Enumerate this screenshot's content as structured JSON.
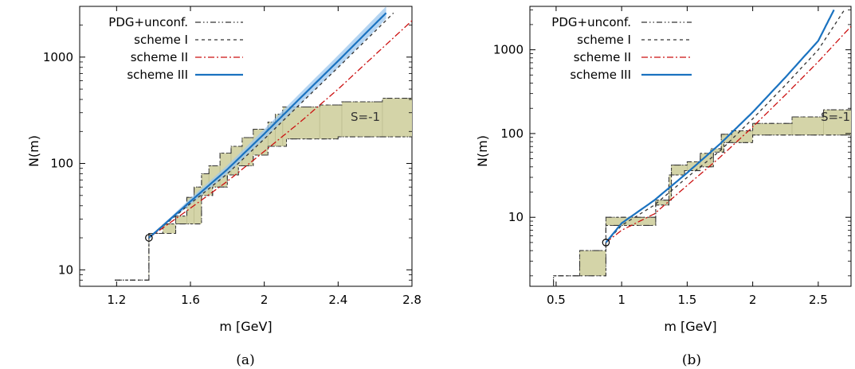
{
  "chart_data": [
    {
      "type": "line",
      "caption": "(a)",
      "xlabel": "m [GeV]",
      "ylabel": "N(m)",
      "xlim": [
        1.0,
        2.8
      ],
      "ylim": [
        7,
        3000
      ],
      "yscale": "log",
      "xticks": [
        "1.2",
        "1.6",
        "2",
        "2.4",
        "2.8"
      ],
      "yticks": [
        "10",
        "100",
        "1000"
      ],
      "band_label": "S=-1",
      "legend_position": "top-left",
      "legend": [
        {
          "name": "PDG+unconf.",
          "style": "dash-dot-dot",
          "color": "#333333"
        },
        {
          "name": "scheme I",
          "style": "dashed",
          "color": "#333333"
        },
        {
          "name": "scheme II",
          "style": "dash-dot",
          "color": "#cc1111"
        },
        {
          "name": "scheme III",
          "style": "solid",
          "color": "#1a72c0"
        }
      ],
      "threshold_point": {
        "x": 1.375,
        "y": 20
      },
      "band_colors": {
        "fill": "#d4d4a8",
        "edge": "#333333"
      },
      "pdg_lower": [
        [
          1.19,
          8
        ],
        [
          1.375,
          8
        ],
        [
          1.375,
          22
        ],
        [
          1.52,
          22
        ],
        [
          1.52,
          27
        ],
        [
          1.66,
          27
        ],
        [
          1.66,
          50
        ],
        [
          1.72,
          50
        ],
        [
          1.72,
          60
        ],
        [
          1.8,
          60
        ],
        [
          1.8,
          78
        ],
        [
          1.86,
          78
        ],
        [
          1.86,
          95
        ],
        [
          1.94,
          95
        ],
        [
          1.94,
          120
        ],
        [
          2.02,
          120
        ],
        [
          2.02,
          145
        ],
        [
          2.12,
          145
        ],
        [
          2.12,
          170
        ],
        [
          2.4,
          170
        ],
        [
          2.4,
          178
        ],
        [
          2.8,
          178
        ]
      ],
      "pdg_upper": [
        [
          1.19,
          8
        ],
        [
          1.375,
          8
        ],
        [
          1.375,
          22
        ],
        [
          1.45,
          22
        ],
        [
          1.45,
          27
        ],
        [
          1.52,
          27
        ],
        [
          1.52,
          32
        ],
        [
          1.58,
          32
        ],
        [
          1.58,
          48
        ],
        [
          1.62,
          48
        ],
        [
          1.62,
          60
        ],
        [
          1.66,
          60
        ],
        [
          1.66,
          80
        ],
        [
          1.7,
          80
        ],
        [
          1.7,
          95
        ],
        [
          1.76,
          95
        ],
        [
          1.76,
          125
        ],
        [
          1.82,
          125
        ],
        [
          1.82,
          145
        ],
        [
          1.88,
          145
        ],
        [
          1.88,
          175
        ],
        [
          1.94,
          175
        ],
        [
          1.94,
          210
        ],
        [
          2.02,
          210
        ],
        [
          2.02,
          245
        ],
        [
          2.06,
          245
        ],
        [
          2.06,
          290
        ],
        [
          2.1,
          290
        ],
        [
          2.1,
          340
        ],
        [
          2.3,
          340
        ],
        [
          2.3,
          355
        ],
        [
          2.42,
          355
        ],
        [
          2.42,
          380
        ],
        [
          2.64,
          380
        ],
        [
          2.64,
          410
        ],
        [
          2.8,
          410
        ]
      ],
      "series": [
        {
          "name": "scheme I",
          "x": [
            1.375,
            1.6,
            1.8,
            2.0,
            2.2,
            2.4,
            2.6,
            2.7
          ],
          "y": [
            20,
            42,
            80,
            170,
            370,
            800,
            1750,
            2600
          ]
        },
        {
          "name": "scheme II",
          "x": [
            1.375,
            1.6,
            1.8,
            2.0,
            2.2,
            2.4,
            2.6,
            2.8
          ],
          "y": [
            20,
            38,
            68,
            130,
            250,
            500,
            1050,
            2200
          ]
        },
        {
          "name": "scheme III",
          "x": [
            1.375,
            1.6,
            1.8,
            2.0,
            2.2,
            2.4,
            2.6,
            2.66
          ],
          "y": [
            20,
            44,
            88,
            190,
            420,
            920,
            2050,
            2600
          ],
          "band_lower": [
            20,
            41,
            80,
            170,
            370,
            800,
            1780,
            2300
          ],
          "band_upper": [
            20,
            47,
            96,
            210,
            470,
            1040,
            2350,
            3000
          ]
        }
      ]
    },
    {
      "type": "line",
      "caption": "(b)",
      "xlabel": "m [GeV]",
      "ylabel": "N(m)",
      "xlim": [
        0.3,
        2.75
      ],
      "ylim": [
        1.5,
        3300
      ],
      "yscale": "log",
      "xticks": [
        "0.5",
        "1",
        "1.5",
        "2",
        "2.5"
      ],
      "yticks": [
        "10",
        "100",
        "1000"
      ],
      "band_label": "S=-1",
      "legend_position": "top-left",
      "legend": [
        {
          "name": "PDG+unconf.",
          "style": "dash-dot-dot",
          "color": "#333333"
        },
        {
          "name": "scheme I",
          "style": "dashed",
          "color": "#333333"
        },
        {
          "name": "scheme II",
          "style": "dash-dot",
          "color": "#cc1111"
        },
        {
          "name": "scheme III",
          "style": "solid",
          "color": "#1a72c0"
        }
      ],
      "threshold_point": {
        "x": 0.88,
        "y": 5
      },
      "band_colors": {
        "fill": "#d4d4a8",
        "edge": "#333333"
      },
      "pdg_lower": [
        [
          0.48,
          1.5
        ],
        [
          0.48,
          2
        ],
        [
          0.68,
          2
        ],
        [
          0.68,
          2
        ],
        [
          0.88,
          2
        ],
        [
          0.88,
          8
        ],
        [
          1.26,
          8
        ],
        [
          1.26,
          14
        ],
        [
          1.36,
          14
        ],
        [
          1.36,
          32
        ],
        [
          1.48,
          32
        ],
        [
          1.48,
          36
        ],
        [
          1.6,
          36
        ],
        [
          1.6,
          40
        ],
        [
          1.7,
          40
        ],
        [
          1.7,
          60
        ],
        [
          1.78,
          60
        ],
        [
          1.78,
          78
        ],
        [
          2.0,
          78
        ],
        [
          2.0,
          96
        ],
        [
          2.75,
          96
        ]
      ],
      "pdg_upper": [
        [
          0.48,
          1.5
        ],
        [
          0.48,
          2
        ],
        [
          0.68,
          2
        ],
        [
          0.68,
          4
        ],
        [
          0.88,
          4
        ],
        [
          0.88,
          10
        ],
        [
          1.26,
          10
        ],
        [
          1.26,
          16
        ],
        [
          1.38,
          16
        ],
        [
          1.38,
          42
        ],
        [
          1.5,
          42
        ],
        [
          1.5,
          46
        ],
        [
          1.6,
          46
        ],
        [
          1.6,
          58
        ],
        [
          1.68,
          58
        ],
        [
          1.68,
          66
        ],
        [
          1.76,
          66
        ],
        [
          1.76,
          98
        ],
        [
          1.84,
          98
        ],
        [
          1.84,
          108
        ],
        [
          2.0,
          108
        ],
        [
          2.0,
          132
        ],
        [
          2.3,
          132
        ],
        [
          2.3,
          158
        ],
        [
          2.54,
          158
        ],
        [
          2.54,
          192
        ],
        [
          2.75,
          192
        ]
      ],
      "series": [
        {
          "name": "scheme I",
          "x": [
            0.88,
            1.0,
            1.25,
            1.5,
            1.75,
            2.0,
            2.25,
            2.5,
            2.7
          ],
          "y": [
            5,
            8,
            14,
            30,
            62,
            150,
            380,
            1000,
            3000
          ]
        },
        {
          "name": "scheme II",
          "x": [
            0.88,
            1.0,
            1.25,
            1.5,
            1.75,
            2.0,
            2.25,
            2.5,
            2.75
          ],
          "y": [
            5,
            7,
            11,
            24,
            52,
            120,
            290,
            720,
            1900
          ]
        },
        {
          "name": "scheme III",
          "x": [
            0.88,
            1.0,
            1.25,
            1.5,
            1.75,
            2.0,
            2.25,
            2.5,
            2.62
          ],
          "y": [
            5,
            8.5,
            16,
            34,
            75,
            180,
            470,
            1280,
            3000
          ]
        }
      ]
    }
  ]
}
